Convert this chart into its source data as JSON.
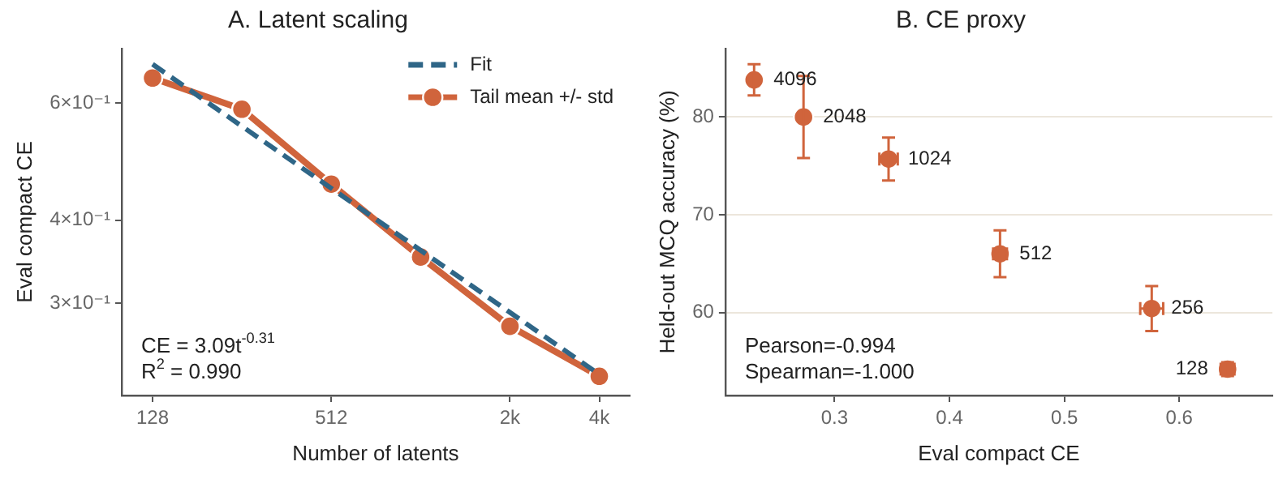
{
  "chart_data": [
    {
      "type": "line",
      "title": "A. Latent scaling",
      "xlabel": "Number of latents",
      "ylabel": "Eval compact CE",
      "log": "xy",
      "legend": "top right",
      "grid": false,
      "xlim": [
        100.7,
        5186
      ],
      "xticks": [
        128,
        512,
        {
          "value": 2048,
          "label": "2k"
        },
        {
          "value": 4096,
          "label": "4k"
        }
      ],
      "ylim": [
        0.218,
        0.724
      ],
      "yticks": [
        {
          "value": 0.3,
          "label": "3×10⁻¹"
        },
        {
          "value": 0.4,
          "label": "4×10⁻¹"
        },
        {
          "value": 0.6,
          "label": "6×10⁻¹"
        }
      ],
      "series": [
        {
          "name": "Fit",
          "type": "line",
          "color": "#2f6687",
          "line_style": "dashed",
          "marker": "none",
          "x": [
            128,
            4096
          ],
          "values": [
            0.686,
            0.2345
          ]
        },
        {
          "name": "Tail mean +/- std",
          "type": "line",
          "color": "#d0643c",
          "line_style": "solid",
          "marker": "circle",
          "x": [
            128,
            256,
            512,
            1024,
            2048,
            4096
          ],
          "values": [
            0.654,
            0.587,
            0.453,
            0.352,
            0.277,
            0.233
          ]
        }
      ],
      "annotations": [
        "CE = 3.09t$^{-0.31}$",
        "R$^{2}$ = 0.990"
      ]
    },
    {
      "type": "scatter",
      "title": "B. CE proxy",
      "xlabel": "Eval compact CE",
      "ylabel": "Held-out MCQ accuracy (%)",
      "grid": "y",
      "xlim": [
        0.205,
        0.681
      ],
      "xticks": [
        0.3,
        0.4,
        0.5,
        0.6
      ],
      "ylim": [
        51.5,
        87
      ],
      "yticks": [
        60,
        70,
        80
      ],
      "series": [
        {
          "color": "#d0643c",
          "marker": "circle",
          "x": [
            0.23,
            0.273,
            0.347,
            0.444,
            0.576,
            0.642
          ],
          "values": [
            83.8,
            80.0,
            75.7,
            66.0,
            60.4,
            54.2
          ],
          "errors": [
            1.6,
            4.2,
            2.2,
            2.4,
            2.3,
            0.7
          ],
          "xerrors": [
            null,
            null,
            0.008,
            0.006,
            0.01,
            0.006
          ]
        }
      ],
      "annotations": [
        {
          "text": "4096",
          "x": 0.23,
          "y": 83.8
        },
        {
          "text": "2048",
          "x": 0.273,
          "y": 80.0
        },
        {
          "text": "1024",
          "x": 0.347,
          "y": 75.7
        },
        {
          "text": "512",
          "x": 0.444,
          "y": 66.0
        },
        {
          "text": "256",
          "x": 0.576,
          "y": 60.4
        },
        {
          "text": "128",
          "x": 0.642,
          "y": 54.2
        },
        "Pearson=-0.994",
        "Spearman=-1.000"
      ]
    }
  ]
}
